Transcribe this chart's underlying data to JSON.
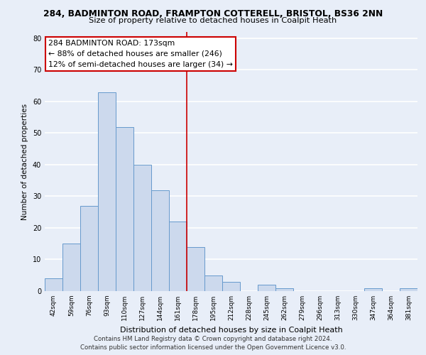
{
  "title_line1": "284, BADMINTON ROAD, FRAMPTON COTTERELL, BRISTOL, BS36 2NN",
  "title_line2": "Size of property relative to detached houses in Coalpit Heath",
  "xlabel": "Distribution of detached houses by size in Coalpit Heath",
  "ylabel": "Number of detached properties",
  "bar_labels": [
    "42sqm",
    "59sqm",
    "76sqm",
    "93sqm",
    "110sqm",
    "127sqm",
    "144sqm",
    "161sqm",
    "178sqm",
    "195sqm",
    "212sqm",
    "228sqm",
    "245sqm",
    "262sqm",
    "279sqm",
    "296sqm",
    "313sqm",
    "330sqm",
    "347sqm",
    "364sqm",
    "381sqm"
  ],
  "bar_values": [
    4,
    15,
    27,
    63,
    52,
    40,
    32,
    22,
    14,
    5,
    3,
    0,
    2,
    1,
    0,
    0,
    0,
    0,
    1,
    0,
    1
  ],
  "bar_color": "#ccd9ed",
  "bar_edge_color": "#6699cc",
  "ylim": [
    0,
    82
  ],
  "yticks": [
    0,
    10,
    20,
    30,
    40,
    50,
    60,
    70,
    80
  ],
  "vline_index": 8,
  "annotation_title": "284 BADMINTON ROAD: 173sqm",
  "annotation_line1": "← 88% of detached houses are smaller (246)",
  "annotation_line2": "12% of semi-detached houses are larger (34) →",
  "annotation_box_color": "#ffffff",
  "annotation_box_edge": "#cc0000",
  "vline_color": "#cc0000",
  "footer_line1": "Contains HM Land Registry data © Crown copyright and database right 2024.",
  "footer_line2": "Contains public sector information licensed under the Open Government Licence v3.0.",
  "background_color": "#e8eef8",
  "grid_color": "#d0d8e8",
  "plot_bg_color": "#e8eef8"
}
